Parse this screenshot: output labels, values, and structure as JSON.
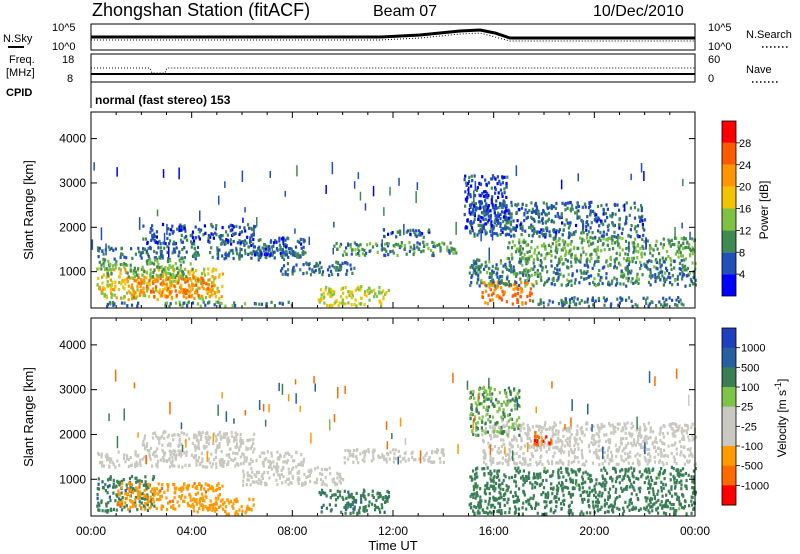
{
  "header": {
    "station_title": "Zhongshan Station (fitACF)",
    "beam": "Beam 07",
    "date": "10/Dec/2010"
  },
  "top_panels": {
    "nsky_label": "N.Sky",
    "nsearch_label": "N.Search",
    "noise_left_ticks": [
      "10^5",
      "10^0"
    ],
    "noise_right_ticks": [
      "10^5",
      "10^0"
    ],
    "freq_label_1": "Freq.",
    "freq_label_2": "[MHz]",
    "freq_ticks": [
      "18",
      "8"
    ],
    "nave_label": "Nave",
    "nave_ticks": [
      "60",
      "0"
    ],
    "cpid_label": "CPID",
    "cpid_text": "normal (fast stereo) 153"
  },
  "colors": {
    "power": [
      "#0000ff",
      "#2050b8",
      "#3e8a52",
      "#7dc242",
      "#f2c300",
      "#ff9600",
      "#ff5a00",
      "#ff0000"
    ],
    "velocity": [
      "#1f3fbf",
      "#275fa0",
      "#3a7e56",
      "#7ec34a",
      "#c8c8c0",
      "#c8c8c0",
      "#ff9a00",
      "#ff6a00",
      "#ff0000"
    ],
    "ground_scatter": "#c8c8c0"
  },
  "chart_data": [
    {
      "type": "heatmap",
      "title": "",
      "xlabel": "Time UT",
      "ylabel": "Slant Range [km]",
      "xlim": [
        0,
        24
      ],
      "ylim": [
        180,
        4600
      ],
      "xticks": [
        "00:00",
        "04:00",
        "08:00",
        "12:00",
        "16:00",
        "20:00",
        "00:00"
      ],
      "yticks": [
        1000,
        2000,
        3000,
        4000
      ],
      "colorbar": {
        "label": "Power [dB]",
        "ticks": [
          "4",
          "8",
          "12",
          "16",
          "20",
          "24",
          "28"
        ],
        "range": [
          0,
          32
        ]
      },
      "scatter_regions": [
        {
          "t0": 0.2,
          "t1": 8.3,
          "r0": 1300,
          "r1": 1600,
          "level": 8
        },
        {
          "t0": 0.2,
          "t1": 5.2,
          "r0": 400,
          "r1": 1100,
          "level": 18
        },
        {
          "t0": 1.5,
          "t1": 4.8,
          "r0": 450,
          "r1": 900,
          "level": 24
        },
        {
          "t0": 0.3,
          "t1": 4.0,
          "r0": 900,
          "r1": 1300,
          "level": 12
        },
        {
          "t0": 2.0,
          "t1": 6.5,
          "r0": 1650,
          "r1": 2100,
          "level": 6
        },
        {
          "t0": 6.0,
          "t1": 8.5,
          "r0": 1400,
          "r1": 1800,
          "level": 7
        },
        {
          "t0": 7.5,
          "t1": 10.5,
          "r0": 950,
          "r1": 1250,
          "level": 8
        },
        {
          "t0": 9.0,
          "t1": 11.8,
          "r0": 250,
          "r1": 700,
          "level": 16
        },
        {
          "t0": 9.5,
          "t1": 14.5,
          "r0": 1400,
          "r1": 1700,
          "level": 10
        },
        {
          "t0": 11.5,
          "t1": 13.5,
          "r0": 1800,
          "r1": 2000,
          "level": 7
        },
        {
          "t0": 15.5,
          "t1": 17.5,
          "r0": 300,
          "r1": 800,
          "level": 24
        },
        {
          "t0": 15.0,
          "t1": 24.0,
          "r0": 700,
          "r1": 1300,
          "level": 9
        },
        {
          "t0": 16.5,
          "t1": 24.0,
          "r0": 1300,
          "r1": 1800,
          "level": 12
        },
        {
          "t0": 15.0,
          "t1": 22.0,
          "r0": 1800,
          "r1": 2600,
          "level": 7
        },
        {
          "t0": 17.5,
          "t1": 23.5,
          "r0": 250,
          "r1": 450,
          "level": 8
        },
        {
          "t0": 14.8,
          "t1": 16.5,
          "r0": 2000,
          "r1": 3200,
          "level": 5
        },
        {
          "t0": 0.5,
          "t1": 8.0,
          "r0": 250,
          "r1": 350,
          "level": 10
        }
      ]
    },
    {
      "type": "heatmap",
      "title": "",
      "xlabel": "Time UT",
      "ylabel": "Slant Range [km]",
      "xlim": [
        0,
        24
      ],
      "ylim": [
        180,
        4600
      ],
      "xticks": [
        "00:00",
        "04:00",
        "08:00",
        "12:00",
        "16:00",
        "20:00",
        "00:00"
      ],
      "yticks": [
        1000,
        2000,
        3000,
        4000
      ],
      "colorbar": {
        "label": "Velocity [m s^-1]",
        "ticks": [
          "1000",
          "500",
          "100",
          "25",
          "-25",
          "-100",
          "-500",
          "-1000"
        ]
      },
      "scatter_regions": [
        {
          "t0": 0.2,
          "t1": 8.5,
          "r0": 1300,
          "r1": 1650,
          "level": 0
        },
        {
          "t0": 2.0,
          "t1": 6.5,
          "r0": 1650,
          "r1": 2100,
          "level": 0
        },
        {
          "t0": 6.0,
          "t1": 10.0,
          "r0": 900,
          "r1": 1300,
          "level": 0
        },
        {
          "t0": 0.2,
          "t1": 2.5,
          "r0": 300,
          "r1": 1100,
          "level": 200
        },
        {
          "t0": 1.0,
          "t1": 5.2,
          "r0": 350,
          "r1": 950,
          "level": -200
        },
        {
          "t0": 4.0,
          "t1": 6.5,
          "r0": 250,
          "r1": 600,
          "level": -80
        },
        {
          "t0": 9.0,
          "t1": 11.8,
          "r0": 250,
          "r1": 800,
          "level": 200
        },
        {
          "t0": 10.0,
          "t1": 14.0,
          "r0": 1400,
          "r1": 1700,
          "level": 0
        },
        {
          "t0": 15.0,
          "t1": 24.0,
          "r0": 250,
          "r1": 1300,
          "level": 150
        },
        {
          "t0": 15.5,
          "t1": 24.0,
          "r0": 1350,
          "r1": 2300,
          "level": 0
        },
        {
          "t0": 17.5,
          "t1": 18.3,
          "r0": 1800,
          "r1": 2100,
          "level": -700
        },
        {
          "t0": 15.0,
          "t1": 17.0,
          "r0": 2000,
          "r1": 3100,
          "level": 60
        }
      ]
    }
  ]
}
